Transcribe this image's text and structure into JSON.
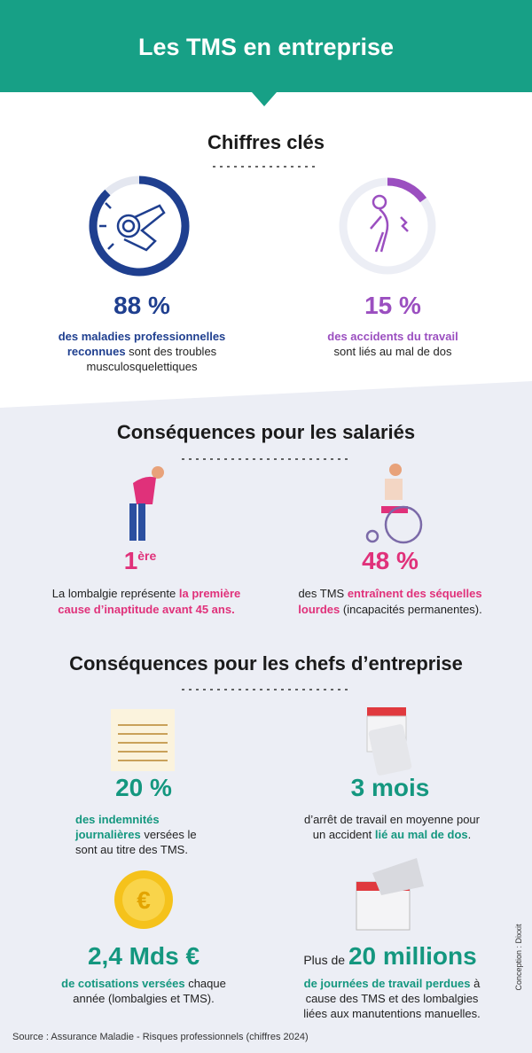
{
  "header": {
    "title": "Les TMS en entreprise"
  },
  "key_figures": {
    "title": "Chiffres clés",
    "items": [
      {
        "stat": {
          "value": 88,
          "label": "88 %"
        },
        "description": [
          [
            "des maladies professionnelles"
          ],
          [
            "reconnues",
            " sont des troubles"
          ],
          [
            "musculosquelettiques"
          ]
        ]
      },
      {
        "stat": {
          "value": 15,
          "label": "15 %"
        },
        "description": [
          [
            "des accidents du travail"
          ],
          [
            "sont liés au mal de dos"
          ]
        ]
      }
    ]
  },
  "employees": {
    "title": "Conséquences pour les salariés",
    "items": [
      {
        "stat": [
          "1",
          "ère"
        ],
        "description": [
          [
            "La lombalgie représente ",
            "la première"
          ],
          [
            "cause d’inaptitude avant 45 ans."
          ]
        ]
      },
      {
        "stat": "48 %",
        "description": [
          [
            "des TMS ",
            "entraînent des séquelles"
          ],
          [
            "lourdes",
            " (incapacités permanentes)."
          ]
        ]
      }
    ]
  },
  "employers": {
    "title": "Conséquences pour les chefs d’entreprise",
    "items": [
      {
        "stat": "20 %",
        "description": [
          [
            "des indemnités"
          ],
          [
            "journalières",
            " versées le"
          ],
          [
            "sont au titre des TMS."
          ]
        ]
      },
      {
        "stat": "3 mois",
        "description": [
          [
            "d’arrêt de travail en moyenne pour"
          ],
          [
            "un accident ",
            "lié au mal de dos",
            "."
          ]
        ]
      },
      {
        "stat": "2,4 Mds €",
        "description": [
          [
            "de cotisations versées",
            " chaque"
          ],
          [
            "année (lombalgies et TMS)."
          ]
        ]
      },
      {
        "stat": [
          "Plus de ",
          "20 millions"
        ],
        "description": [
          [
            "de journées de travail perdues",
            " à"
          ],
          [
            "cause des TMS et des lombalgies"
          ],
          [
            "liées aux manutentions manuelles."
          ]
        ]
      }
    ]
  },
  "source": "Source : Assurance Maladie - Risques professionnels (chiffres 2024)",
  "credit": "Conception : Dixxit"
}
